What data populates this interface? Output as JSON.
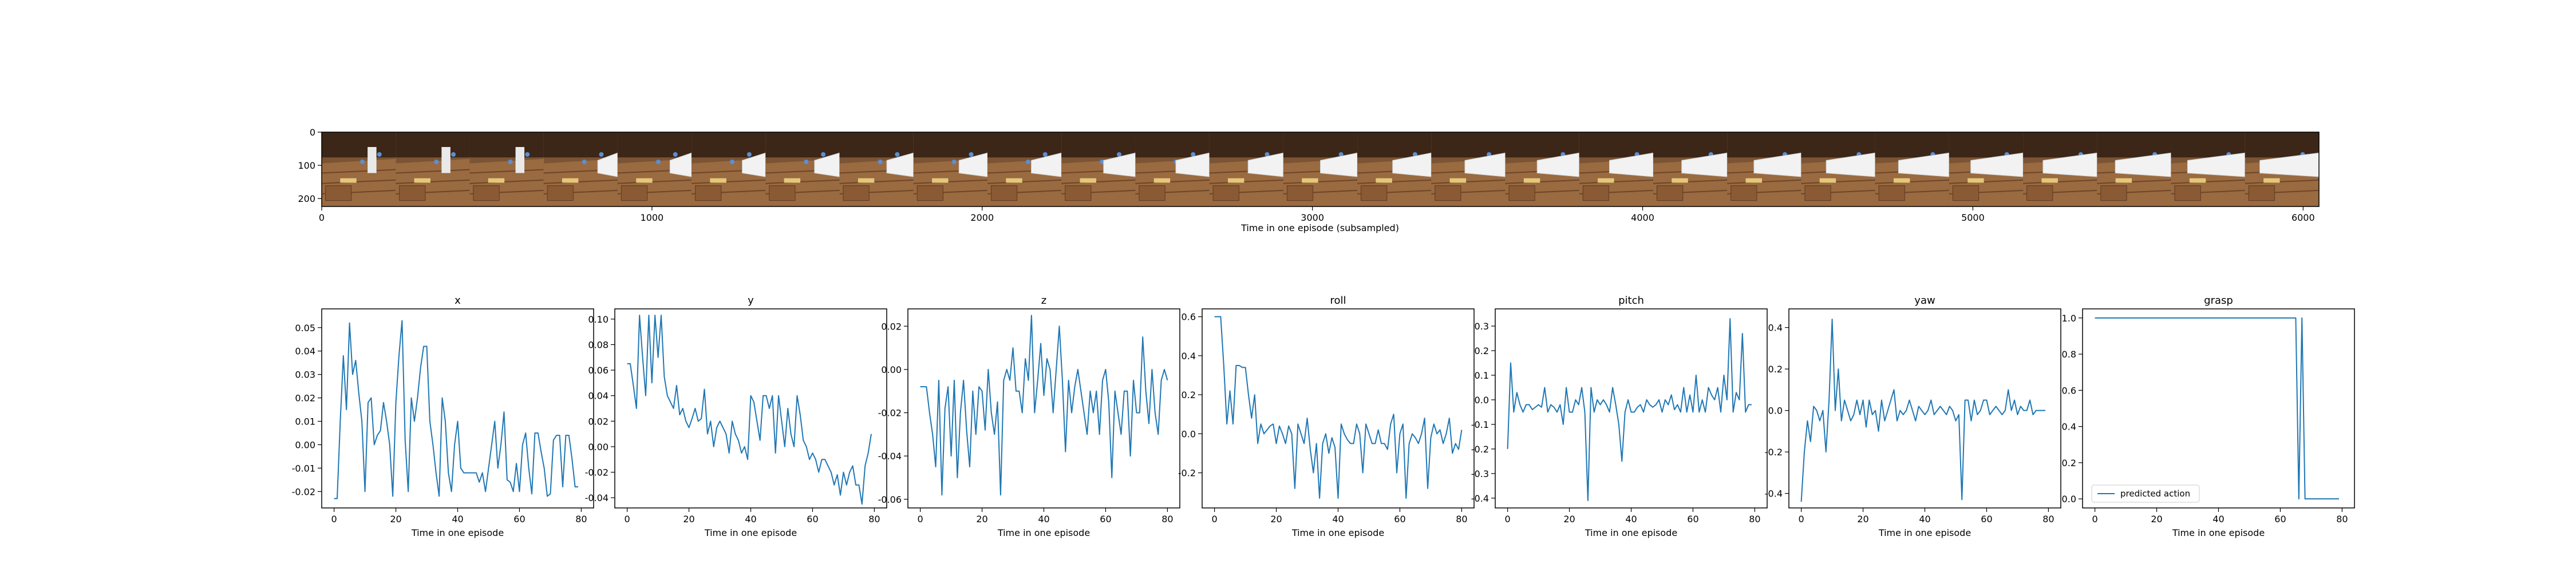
{
  "colors": {
    "line": "#1f77b4",
    "axis": "#000000",
    "background": "#ffffff"
  },
  "filmstrip": {
    "xlabel": "Time in one episode (subsampled)",
    "xlim": [
      0,
      6048
    ],
    "ylim": [
      0,
      224
    ],
    "xticks": [
      "0",
      "1000",
      "2000",
      "3000",
      "4000",
      "5000",
      "6000"
    ],
    "yticks": [
      "0",
      "100",
      "200"
    ],
    "frame_count": 27,
    "frame_width": 224
  },
  "chart_data": [
    {
      "type": "line",
      "title": "x",
      "xlabel": "Time in one episode",
      "xlim": [
        -4,
        84
      ],
      "ylim": [
        -0.027,
        0.058
      ],
      "xticks": [
        "0",
        "20",
        "40",
        "60",
        "80"
      ],
      "yticks": [
        "-0.02",
        "-0.01",
        "0.00",
        "0.01",
        "0.02",
        "0.03",
        "0.04",
        "0.05"
      ],
      "legend": null,
      "values": [
        -0.023,
        -0.023,
        0.01,
        0.038,
        0.015,
        0.052,
        0.03,
        0.036,
        0.022,
        0.01,
        -0.02,
        0.018,
        0.02,
        0.0,
        0.004,
        0.006,
        0.018,
        0.01,
        0.0,
        -0.022,
        0.018,
        0.038,
        0.053,
        0.002,
        -0.02,
        0.02,
        0.01,
        0.02,
        0.033,
        0.042,
        0.042,
        0.01,
        0.0,
        -0.012,
        -0.022,
        0.02,
        0.01,
        -0.012,
        -0.02,
        0.0,
        0.01,
        -0.01,
        -0.012,
        -0.012,
        -0.012,
        -0.012,
        -0.012,
        -0.016,
        -0.012,
        -0.02,
        -0.01,
        0.0,
        0.01,
        -0.01,
        0.0,
        0.014,
        -0.015,
        -0.016,
        -0.02,
        -0.008,
        -0.02,
        0.0,
        0.005,
        -0.01,
        -0.021,
        0.005,
        0.005,
        -0.003,
        -0.01,
        -0.022,
        -0.021,
        0.002,
        0.004,
        0.004,
        -0.018,
        0.004,
        0.004,
        -0.006,
        -0.018,
        -0.018
      ]
    },
    {
      "type": "line",
      "title": "y",
      "xlabel": "Time in one episode",
      "xlim": [
        -4,
        84
      ],
      "ylim": [
        -0.048,
        0.108
      ],
      "xticks": [
        "0",
        "20",
        "40",
        "60",
        "80"
      ],
      "yticks": [
        "-0.04",
        "-0.02",
        "0.00",
        "0.02",
        "0.04",
        "0.06",
        "0.08",
        "0.10"
      ],
      "legend": null,
      "values": [
        0.065,
        0.065,
        0.048,
        0.03,
        0.103,
        0.07,
        0.04,
        0.103,
        0.05,
        0.103,
        0.07,
        0.103,
        0.055,
        0.04,
        0.035,
        0.03,
        0.048,
        0.025,
        0.03,
        0.02,
        0.015,
        0.022,
        0.03,
        0.02,
        0.022,
        0.045,
        0.01,
        0.02,
        0.0,
        0.015,
        0.02,
        0.015,
        0.01,
        -0.005,
        0.02,
        0.01,
        0.005,
        -0.005,
        0.0,
        -0.01,
        0.04,
        0.035,
        0.02,
        0.005,
        0.04,
        0.04,
        0.03,
        0.04,
        -0.005,
        0.04,
        0.02,
        0.0,
        0.03,
        0.01,
        0.0,
        0.04,
        0.025,
        0.005,
        0.0,
        -0.01,
        -0.005,
        -0.01,
        -0.02,
        -0.01,
        -0.01,
        -0.015,
        -0.02,
        -0.03,
        -0.022,
        -0.038,
        -0.02,
        -0.03,
        -0.02,
        -0.015,
        -0.03,
        -0.03,
        -0.045,
        -0.015,
        -0.005,
        0.01
      ]
    },
    {
      "type": "line",
      "title": "z",
      "xlabel": "Time in one episode",
      "xlim": [
        -4,
        84
      ],
      "ylim": [
        -0.064,
        0.028
      ],
      "xticks": [
        "0",
        "20",
        "40",
        "60",
        "80"
      ],
      "yticks": [
        "-0.06",
        "-0.04",
        "-0.02",
        "0.00",
        "0.02"
      ],
      "legend": null,
      "values": [
        -0.008,
        -0.008,
        -0.008,
        -0.02,
        -0.03,
        -0.045,
        -0.005,
        -0.058,
        -0.018,
        -0.008,
        -0.04,
        -0.005,
        -0.05,
        -0.02,
        -0.005,
        -0.028,
        -0.045,
        -0.01,
        -0.03,
        -0.008,
        -0.01,
        -0.028,
        0.0,
        -0.02,
        -0.03,
        -0.015,
        -0.058,
        -0.005,
        0.0,
        -0.005,
        0.01,
        -0.01,
        -0.01,
        -0.02,
        0.005,
        -0.005,
        0.025,
        -0.02,
        -0.005,
        0.012,
        -0.012,
        0.005,
        0.0,
        -0.02,
        0.0,
        0.02,
        -0.005,
        -0.038,
        -0.005,
        -0.02,
        -0.008,
        0.0,
        -0.01,
        -0.02,
        -0.03,
        -0.01,
        -0.02,
        -0.01,
        -0.03,
        -0.005,
        0.0,
        -0.015,
        -0.05,
        -0.01,
        -0.02,
        -0.03,
        -0.01,
        -0.01,
        -0.04,
        -0.005,
        -0.02,
        -0.02,
        0.015,
        -0.01,
        -0.025,
        0.0,
        -0.02,
        -0.03,
        -0.005,
        0.0,
        -0.005
      ]
    },
    {
      "type": "line",
      "title": "roll",
      "xlabel": "Time in one episode",
      "xlim": [
        -4,
        84
      ],
      "ylim": [
        -0.38,
        0.64
      ],
      "xticks": [
        "0",
        "20",
        "40",
        "60",
        "80"
      ],
      "yticks": [
        "-0.2",
        "0.0",
        "0.2",
        "0.4",
        "0.6"
      ],
      "legend": null,
      "values": [
        0.6,
        0.6,
        0.6,
        0.35,
        0.05,
        0.22,
        0.05,
        0.35,
        0.35,
        0.34,
        0.34,
        0.2,
        0.08,
        0.2,
        -0.05,
        0.05,
        0.0,
        0.02,
        0.04,
        0.05,
        -0.05,
        0.04,
        0.0,
        -0.05,
        0.04,
        0.0,
        -0.28,
        0.05,
        0.0,
        -0.05,
        0.08,
        -0.08,
        -0.2,
        -0.05,
        -0.33,
        -0.05,
        0.0,
        -0.1,
        -0.02,
        -0.07,
        -0.33,
        0.05,
        0.0,
        -0.03,
        -0.05,
        -0.05,
        0.05,
        0.0,
        -0.2,
        0.05,
        0.0,
        -0.05,
        -0.05,
        0.02,
        -0.05,
        -0.05,
        -0.08,
        0.05,
        0.1,
        -0.2,
        0.0,
        0.05,
        -0.33,
        -0.05,
        0.0,
        -0.02,
        -0.05,
        0.0,
        0.08,
        -0.28,
        -0.02,
        0.05,
        0.0,
        0.02,
        -0.05,
        0.0,
        0.08,
        -0.1,
        -0.05,
        -0.08,
        0.02
      ]
    },
    {
      "type": "line",
      "title": "pitch",
      "xlabel": "Time in one episode",
      "xlim": [
        -4,
        84
      ],
      "ylim": [
        -0.44,
        0.37
      ],
      "xticks": [
        "0",
        "20",
        "40",
        "60",
        "80"
      ],
      "yticks": [
        "-0.4",
        "-0.3",
        "-0.2",
        "-0.1",
        "0.0",
        "0.1",
        "0.2",
        "0.3"
      ],
      "legend": null,
      "values": [
        -0.2,
        0.15,
        -0.05,
        0.03,
        -0.02,
        -0.05,
        -0.02,
        -0.02,
        -0.04,
        -0.03,
        -0.02,
        -0.03,
        0.05,
        -0.05,
        -0.02,
        -0.03,
        -0.05,
        -0.02,
        -0.1,
        0.05,
        -0.05,
        -0.05,
        0.0,
        -0.02,
        0.05,
        -0.05,
        -0.41,
        0.05,
        -0.05,
        0.0,
        -0.02,
        0.0,
        -0.02,
        -0.05,
        0.05,
        -0.02,
        -0.1,
        -0.25,
        -0.05,
        0.0,
        -0.05,
        -0.05,
        -0.03,
        -0.02,
        -0.05,
        0.0,
        -0.02,
        -0.03,
        -0.02,
        0.0,
        -0.05,
        0.0,
        -0.02,
        0.02,
        -0.04,
        -0.02,
        -0.05,
        0.05,
        -0.05,
        0.02,
        -0.05,
        0.1,
        -0.05,
        0.0,
        -0.05,
        0.05,
        0.02,
        0.0,
        0.05,
        -0.05,
        0.1,
        0.0,
        0.33,
        -0.05,
        0.03,
        0.0,
        0.27,
        -0.05,
        -0.02,
        -0.02
      ]
    },
    {
      "type": "line",
      "title": "yaw",
      "xlabel": "Time in one episode",
      "xlim": [
        -4,
        84
      ],
      "ylim": [
        -0.47,
        0.49
      ],
      "xticks": [
        "0",
        "20",
        "40",
        "60",
        "80"
      ],
      "yticks": [
        "-0.4",
        "-0.2",
        "0.0",
        "0.2",
        "0.4"
      ],
      "legend": null,
      "values": [
        -0.44,
        -0.2,
        -0.05,
        -0.15,
        0.02,
        0.0,
        -0.05,
        0.0,
        -0.2,
        0.05,
        0.44,
        0.0,
        0.2,
        -0.05,
        0.05,
        0.0,
        -0.05,
        -0.02,
        0.05,
        -0.02,
        0.05,
        -0.08,
        0.05,
        -0.02,
        0.0,
        -0.1,
        0.05,
        -0.05,
        0.0,
        0.05,
        0.1,
        -0.05,
        0.0,
        -0.02,
        0.0,
        0.05,
        0.0,
        -0.05,
        0.02,
        0.0,
        -0.02,
        0.0,
        0.05,
        -0.02,
        0.0,
        0.02,
        0.0,
        -0.02,
        0.02,
        0.0,
        -0.05,
        -0.02,
        -0.43,
        0.05,
        0.05,
        -0.05,
        0.05,
        -0.02,
        0.0,
        0.05,
        0.05,
        -0.02,
        0.0,
        0.02,
        0.0,
        -0.02,
        0.0,
        0.1,
        0.0,
        0.05,
        -0.02,
        0.02,
        0.0,
        0.0,
        0.05,
        -0.02,
        0.0,
        0.0,
        0.0,
        0.0
      ]
    },
    {
      "type": "line",
      "title": "grasp",
      "xlabel": "Time in one episode",
      "xlim": [
        -4,
        84
      ],
      "ylim": [
        -0.05,
        1.05
      ],
      "xticks": [
        "0",
        "20",
        "40",
        "60",
        "80"
      ],
      "yticks": [
        "0.0",
        "0.2",
        "0.4",
        "0.6",
        "0.8",
        "1.0"
      ],
      "legend": "predicted action",
      "values": [
        1,
        1,
        1,
        1,
        1,
        1,
        1,
        1,
        1,
        1,
        1,
        1,
        1,
        1,
        1,
        1,
        1,
        1,
        1,
        1,
        1,
        1,
        1,
        1,
        1,
        1,
        1,
        1,
        1,
        1,
        1,
        1,
        1,
        1,
        1,
        1,
        1,
        1,
        1,
        1,
        1,
        1,
        1,
        1,
        1,
        1,
        1,
        1,
        1,
        1,
        1,
        1,
        1,
        1,
        1,
        1,
        1,
        1,
        1,
        1,
        1,
        1,
        1,
        1,
        1,
        1,
        0,
        1,
        0,
        0,
        0,
        0,
        0,
        0,
        0,
        0,
        0,
        0,
        0,
        0
      ]
    }
  ]
}
